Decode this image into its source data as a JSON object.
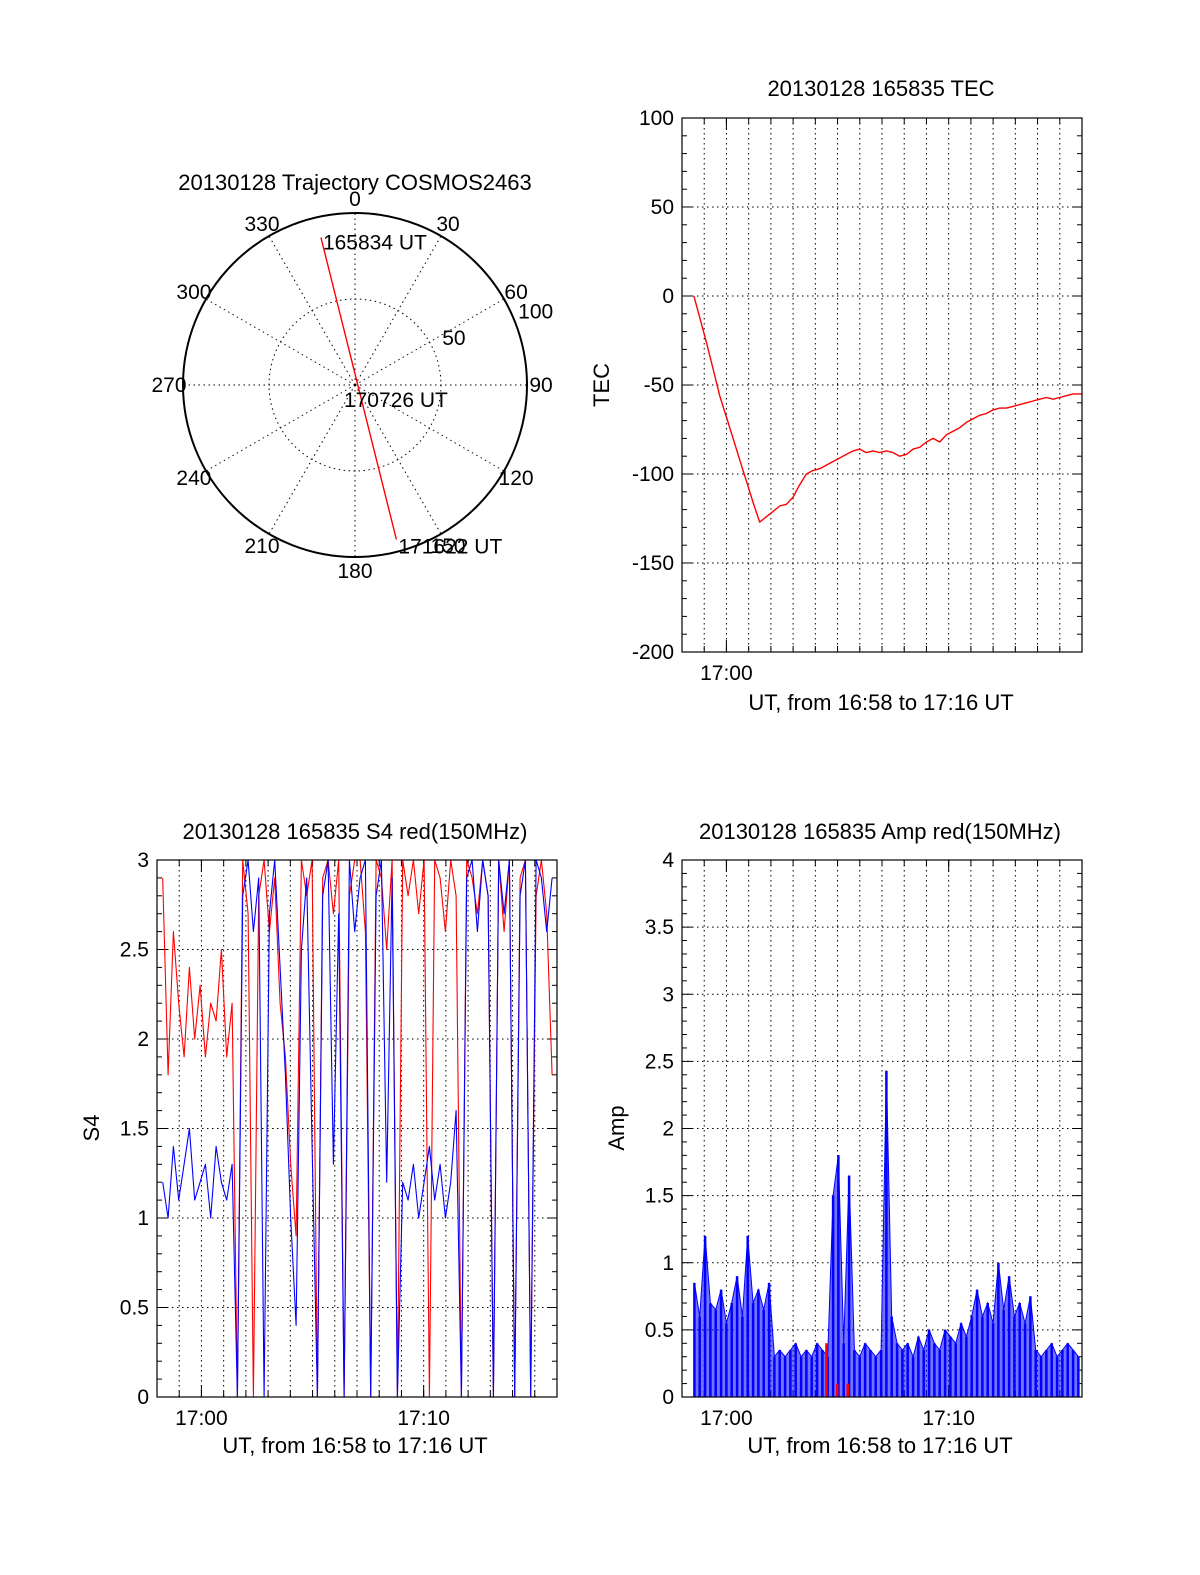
{
  "chart_data": [
    {
      "type": "polar",
      "title": "20130128 Trajectory COSMOS2463",
      "angle_labels": [
        "0",
        "30",
        "60",
        "90",
        "120",
        "150",
        "180",
        "210",
        "240",
        "270",
        "300",
        "330"
      ],
      "angle_values": [
        0,
        30,
        60,
        90,
        120,
        150,
        180,
        210,
        240,
        270,
        300,
        330
      ],
      "radial_labels": [
        "50",
        "100"
      ],
      "radial_values": [
        50,
        100
      ],
      "radial_max": 100,
      "colors": {
        "trajectory": "#ff0000",
        "grid": "#000000"
      },
      "trajectory": {
        "points": [
          {
            "az": 347,
            "r": 88,
            "label": "165834 UT"
          },
          {
            "az": 160,
            "r": 5,
            "label": "170726 UT"
          },
          {
            "az": 165,
            "r": 93,
            "label": "171622 UT"
          }
        ]
      }
    },
    {
      "type": "line",
      "title": "20130128 165835 TEC",
      "xlabel": "UT, from 16:58 to 17:16 UT",
      "ylabel": "TEC",
      "xlim": [
        16.9667,
        17.2667
      ],
      "ylim": [
        -200,
        100
      ],
      "yticks": [
        100,
        50,
        0,
        -50,
        -100,
        -150,
        -200
      ],
      "ytick_labels": [
        "100",
        "50",
        "0",
        "-50",
        "-100",
        "-150",
        "-200"
      ],
      "xticks": [
        17.0
      ],
      "xtick_labels": [
        "17:00"
      ],
      "grid": true,
      "colors": {
        "line": "#ff0000"
      },
      "series": [
        {
          "color": "#ff0000",
          "x": [
            16.9756,
            16.98,
            16.985,
            16.99,
            16.995,
            17.0,
            17.005,
            17.01,
            17.015,
            17.02,
            17.025,
            17.03,
            17.035,
            17.04,
            17.045,
            17.05,
            17.055,
            17.06,
            17.065,
            17.07,
            17.075,
            17.08,
            17.085,
            17.09,
            17.095,
            17.1,
            17.105,
            17.11,
            17.115,
            17.12,
            17.125,
            17.13,
            17.135,
            17.14,
            17.145,
            17.15,
            17.155,
            17.16,
            17.165,
            17.17,
            17.175,
            17.18,
            17.185,
            17.19,
            17.195,
            17.2,
            17.205,
            17.21,
            17.215,
            17.22,
            17.225,
            17.23,
            17.235,
            17.24,
            17.245,
            17.25,
            17.255,
            17.26,
            17.265,
            17.2667
          ],
          "y": [
            0,
            -12,
            -26,
            -41,
            -56,
            -68,
            -80,
            -92,
            -104,
            -116,
            -127,
            -124,
            -121,
            -118,
            -117,
            -113,
            -106,
            -100,
            -98,
            -97,
            -95,
            -93,
            -91,
            -89,
            -87,
            -86,
            -88,
            -87,
            -88,
            -87,
            -88,
            -90,
            -89,
            -86,
            -85,
            -82,
            -80,
            -82,
            -78,
            -76,
            -74,
            -71,
            -69,
            -67,
            -66,
            -64,
            -63,
            -63,
            -62,
            -61,
            -60,
            -59,
            -58,
            -57,
            -58,
            -57,
            -56,
            -55,
            -55,
            -55
          ]
        }
      ]
    },
    {
      "type": "line",
      "title": "20130128 165835 S4 red(150MHz)",
      "xlabel": "UT, from 16:58 to 17:16 UT",
      "ylabel": "S4",
      "xlim": [
        16.9667,
        17.2667
      ],
      "ylim": [
        0,
        3
      ],
      "yticks": [
        0,
        0.5,
        1,
        1.5,
        2,
        2.5,
        3
      ],
      "ytick_labels": [
        "0",
        "0.5",
        "1",
        "1.5",
        "2",
        "2.5",
        "3"
      ],
      "xticks": [
        17.0,
        17.1667
      ],
      "xtick_labels": [
        "17:00",
        "17:10"
      ],
      "grid": true,
      "colors": {
        "red": "#ff0000",
        "blue": "#0000ff"
      },
      "series": [
        {
          "color": "#ff0000",
          "x": [
            16.971,
            16.975,
            16.979,
            16.983,
            16.987,
            16.991,
            16.995,
            16.999,
            17.003,
            17.007,
            17.011,
            17.015,
            17.019,
            17.023,
            17.027,
            17.031,
            17.035,
            17.039,
            17.043,
            17.047,
            17.051,
            17.055,
            17.059,
            17.063,
            17.067,
            17.071,
            17.075,
            17.079,
            17.083,
            17.087,
            17.091,
            17.095,
            17.099,
            17.103,
            17.107,
            17.111,
            17.115,
            17.119,
            17.123,
            17.127,
            17.131,
            17.135,
            17.139,
            17.143,
            17.147,
            17.151,
            17.155,
            17.159,
            17.163,
            17.167,
            17.171,
            17.175,
            17.179,
            17.183,
            17.187,
            17.191,
            17.195,
            17.199,
            17.203,
            17.207,
            17.211,
            17.215,
            17.219,
            17.223,
            17.227,
            17.231,
            17.235,
            17.239,
            17.243,
            17.247,
            17.251,
            17.255,
            17.259,
            17.263
          ],
          "y": [
            2.9,
            1.8,
            2.6,
            2.2,
            1.9,
            2.4,
            2.0,
            2.3,
            1.9,
            2.2,
            2.1,
            2.5,
            1.9,
            2.2,
            0.0,
            3.0,
            2.7,
            0.0,
            2.8,
            3.0,
            2.6,
            2.9,
            2.2,
            1.9,
            1.3,
            0.9,
            3.0,
            2.8,
            3.0,
            0.0,
            2.9,
            3.0,
            2.7,
            3.0,
            0.0,
            2.8,
            3.0,
            3.0,
            2.6,
            0.0,
            3.0,
            2.9,
            2.5,
            3.0,
            0.0,
            3.0,
            2.8,
            3.0,
            2.7,
            3.0,
            0.0,
            3.0,
            2.9,
            2.6,
            3.0,
            2.8,
            0.0,
            3.0,
            2.9,
            2.7,
            3.0,
            2.8,
            0.0,
            3.0,
            2.6,
            3.0,
            0.0,
            2.9,
            3.0,
            0.0,
            2.8,
            3.0,
            2.7,
            1.8
          ]
        },
        {
          "color": "#0000ff",
          "x": [
            16.971,
            16.975,
            16.979,
            16.983,
            16.987,
            16.991,
            16.995,
            16.999,
            17.003,
            17.007,
            17.011,
            17.015,
            17.019,
            17.023,
            17.027,
            17.031,
            17.035,
            17.039,
            17.043,
            17.047,
            17.051,
            17.055,
            17.059,
            17.063,
            17.067,
            17.071,
            17.075,
            17.079,
            17.083,
            17.087,
            17.091,
            17.095,
            17.099,
            17.103,
            17.107,
            17.111,
            17.115,
            17.119,
            17.123,
            17.127,
            17.131,
            17.135,
            17.139,
            17.143,
            17.147,
            17.151,
            17.155,
            17.159,
            17.163,
            17.167,
            17.171,
            17.175,
            17.179,
            17.183,
            17.187,
            17.191,
            17.195,
            17.199,
            17.203,
            17.207,
            17.211,
            17.215,
            17.219,
            17.223,
            17.227,
            17.231,
            17.235,
            17.239,
            17.243,
            17.247,
            17.251,
            17.255,
            17.259,
            17.263
          ],
          "y": [
            1.2,
            1.0,
            1.4,
            1.1,
            1.3,
            1.5,
            1.1,
            1.2,
            1.3,
            1.0,
            1.4,
            1.2,
            1.1,
            1.3,
            0.0,
            2.8,
            3.0,
            2.6,
            2.9,
            0.0,
            2.7,
            3.0,
            2.4,
            1.8,
            1.0,
            0.4,
            2.5,
            2.9,
            1.4,
            0.0,
            2.8,
            3.0,
            1.3,
            2.7,
            0.0,
            3.0,
            2.6,
            2.9,
            3.0,
            0.0,
            2.8,
            3.0,
            1.2,
            2.9,
            0.0,
            1.2,
            1.1,
            1.3,
            1.0,
            1.2,
            1.4,
            1.1,
            1.3,
            1.0,
            1.2,
            1.6,
            0.0,
            2.9,
            3.0,
            2.6,
            3.0,
            2.8,
            0.0,
            3.0,
            2.7,
            3.0,
            0.0,
            2.8,
            3.0,
            0.0,
            3.0,
            2.9,
            2.6,
            2.9
          ]
        }
      ]
    },
    {
      "type": "line",
      "title": "20130128 165835 Amp red(150MHz)",
      "xlabel": "UT, from 16:58 to 17:16 UT",
      "ylabel": "Amp",
      "xlim": [
        16.9667,
        17.2667
      ],
      "ylim": [
        0,
        4
      ],
      "yticks": [
        0,
        0.5,
        1,
        1.5,
        2,
        2.5,
        3,
        3.5,
        4
      ],
      "ytick_labels": [
        "0",
        "0.5",
        "1",
        "1.5",
        "2",
        "2.5",
        "3",
        "3.5",
        "4"
      ],
      "xticks": [
        17.0,
        17.1667
      ],
      "xtick_labels": [
        "17:00",
        "17:10"
      ],
      "grid": true,
      "colors": {
        "red": "#ff0000",
        "blue": "#0000ff"
      },
      "series": [
        {
          "color": "#0000ff",
          "x": [
            16.976,
            16.98,
            16.984,
            16.988,
            16.992,
            16.996,
            17.0,
            17.004,
            17.008,
            17.012,
            17.016,
            17.02,
            17.024,
            17.028,
            17.032,
            17.036,
            17.04,
            17.044,
            17.048,
            17.052,
            17.056,
            17.06,
            17.064,
            17.068,
            17.072,
            17.076,
            17.08,
            17.084,
            17.088,
            17.092,
            17.096,
            17.1,
            17.104,
            17.108,
            17.112,
            17.116,
            17.12,
            17.124,
            17.128,
            17.132,
            17.136,
            17.14,
            17.144,
            17.148,
            17.152,
            17.156,
            17.16,
            17.164,
            17.168,
            17.172,
            17.176,
            17.18,
            17.184,
            17.188,
            17.192,
            17.196,
            17.2,
            17.204,
            17.208,
            17.212,
            17.216,
            17.22,
            17.224,
            17.228,
            17.232,
            17.236,
            17.24,
            17.244,
            17.248,
            17.252,
            17.256,
            17.26,
            17.264
          ],
          "y": [
            0.85,
            0.6,
            1.2,
            0.7,
            0.65,
            0.8,
            0.55,
            0.7,
            0.9,
            0.6,
            1.2,
            0.7,
            0.8,
            0.65,
            0.85,
            0.3,
            0.35,
            0.3,
            0.35,
            0.4,
            0.3,
            0.35,
            0.3,
            0.4,
            0.35,
            0.3,
            1.5,
            1.8,
            0.4,
            1.65,
            0.35,
            0.3,
            0.4,
            0.35,
            0.3,
            0.35,
            2.43,
            0.6,
            0.4,
            0.35,
            0.4,
            0.3,
            0.45,
            0.35,
            0.5,
            0.4,
            0.35,
            0.5,
            0.45,
            0.4,
            0.55,
            0.45,
            0.6,
            0.8,
            0.6,
            0.7,
            0.55,
            1.0,
            0.65,
            0.9,
            0.6,
            0.7,
            0.55,
            0.75,
            0.35,
            0.3,
            0.35,
            0.4,
            0.3,
            0.35,
            0.4,
            0.35,
            0.3
          ]
        },
        {
          "color": "#ff0000",
          "x": [
            17.075,
            17.083,
            17.091
          ],
          "y": [
            0.4,
            0.1,
            0.1
          ]
        }
      ]
    }
  ]
}
